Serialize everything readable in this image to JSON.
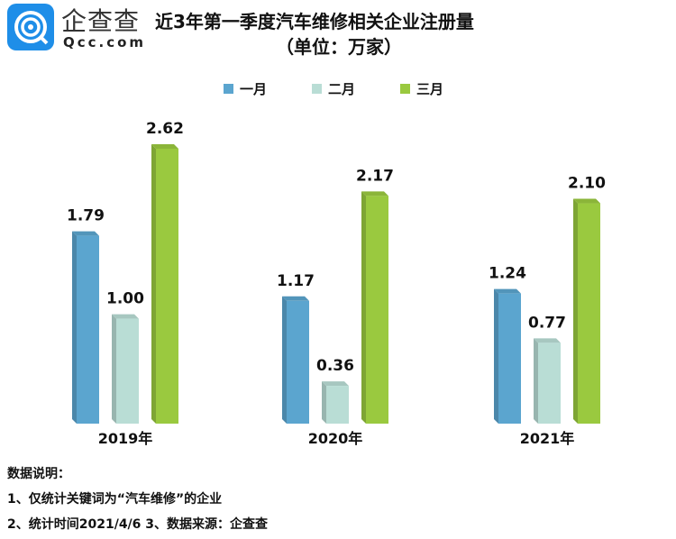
{
  "brand": {
    "name_cn": "企查查",
    "name_en": "Qcc.com"
  },
  "notes": {
    "heading": "数据说明：",
    "line1": "1、仅统计关键词为“汽车维修”的企业",
    "line2": "2、统计时间2021/4/6   3、数据来源：企查查"
  },
  "colors": {
    "一月": "#5ba5cf",
    "二月": "#b9ddd5",
    "三月": "#9ac93f"
  },
  "chart_data": {
    "type": "bar",
    "title": "近3年第一季度汽车维修相关企业注册量",
    "subtitle": "（单位：万家）",
    "categories": [
      "2019年",
      "2020年",
      "2021年"
    ],
    "series": [
      {
        "name": "一月",
        "values": [
          1.79,
          1.17,
          1.24
        ]
      },
      {
        "name": "二月",
        "values": [
          1.0,
          0.36,
          0.77
        ]
      },
      {
        "name": "三月",
        "values": [
          2.62,
          2.17,
          2.1
        ]
      }
    ],
    "legend": "top-center",
    "grid": false,
    "ylim": [
      0,
      2.62
    ]
  }
}
